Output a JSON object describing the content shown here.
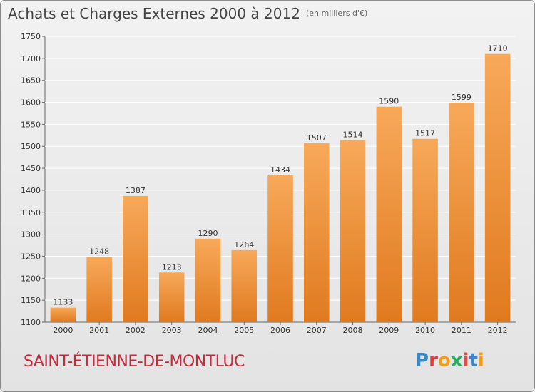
{
  "header": {
    "title": "Achats et Charges Externes 2000 à 2012",
    "unit": "(en milliers d'€)"
  },
  "footer": {
    "city": "SAINT-ÉTIENNE-DE-MONTLUC"
  },
  "logo": {
    "letters": [
      "P",
      "r",
      "o",
      "x",
      "i",
      "t",
      "i"
    ],
    "colors": [
      "#3a86c8",
      "#e23b3b",
      "#f39c12",
      "#27ae60",
      "#e74c3c",
      "#3a86c8",
      "#f39c12"
    ]
  },
  "colors": {
    "bar_top": "#f7a95a",
    "bar_bottom": "#e07a1f",
    "grid": "#ffffff"
  },
  "chart_data": {
    "type": "bar",
    "title": "Achats et Charges Externes 2000 à 2012",
    "categories": [
      "2000",
      "2001",
      "2002",
      "2003",
      "2004",
      "2005",
      "2006",
      "2007",
      "2008",
      "2009",
      "2010",
      "2011",
      "2012"
    ],
    "values": [
      1133,
      1248,
      1387,
      1213,
      1290,
      1264,
      1434,
      1507,
      1514,
      1590,
      1517,
      1599,
      1710
    ],
    "ylim": [
      1100,
      1750
    ],
    "yticks": [
      1100,
      1150,
      1200,
      1250,
      1300,
      1350,
      1400,
      1450,
      1500,
      1550,
      1600,
      1650,
      1700,
      1750
    ],
    "grid": true
  }
}
